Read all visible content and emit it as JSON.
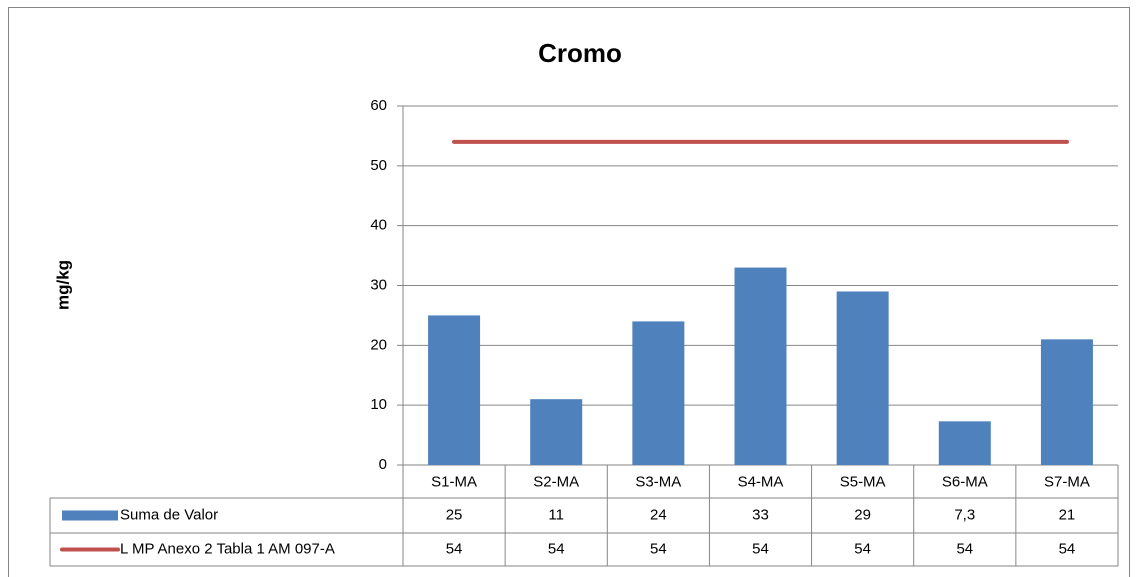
{
  "chart_data": {
    "type": "bar",
    "title": "Cromo",
    "y_label": "mg/kg",
    "categories": [
      "S1-MA",
      "S2-MA",
      "S3-MA",
      "S4-MA",
      "S5-MA",
      "S6-MA",
      "S7-MA"
    ],
    "series": [
      {
        "name": "Suma de Valor",
        "type": "bar",
        "color": "#4f81bd",
        "values": [
          25,
          11,
          24,
          33,
          29,
          7.3,
          21
        ],
        "value_labels": [
          "25",
          "11",
          "24",
          "33",
          "29",
          "7,3",
          "21"
        ]
      },
      {
        "name": "L MP Anexo 2 Tabla 1 AM 097-A",
        "type": "line",
        "color": "#c0504d",
        "values": [
          54,
          54,
          54,
          54,
          54,
          54,
          54
        ]
      }
    ],
    "ylim": [
      0,
      60
    ],
    "yticks": [
      0,
      10,
      20,
      30,
      40,
      50,
      60
    ],
    "grid": true,
    "data_table": true
  }
}
